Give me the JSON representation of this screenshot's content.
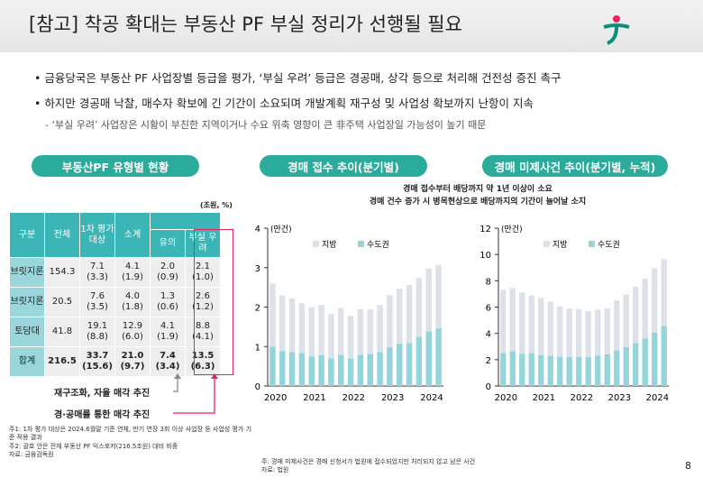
{
  "title": "[참고] 착공 확대는 부동산 PF 부실 정리가 선행될 필요",
  "bullets": [
    "금융당국은 부동산 PF 사업장별 등급을 평가, ‘부실 우려’ 등급은 경공매, 상각 등으로 처리해 건전성 증진 촉구",
    "하지만 경공매 낙찰, 매수자 확보에 긴 기간이 소요되며 개발계획 재구성 및 사업성 확보까지 난항이 지속"
  ],
  "sub_bullet": "- ‘부실 우려’ 사업장은 시황이 부진한 지역이거나 수요 위축 영향이 큰 非주택 사업장일 가능성이 높기 때문",
  "page_number": "8",
  "colors": {
    "accent": "#2bab9b",
    "header": "#3bb5b5",
    "local": "#dde1e8",
    "capital": "#94d5db",
    "highlight": "#e8245a"
  },
  "table": {
    "title": "부동산PF 유형별 현황",
    "unit": "(조원, %)",
    "headers": [
      "구분",
      "전체",
      "1차 평가 대상",
      "소계",
      "유의",
      "부실 우려"
    ],
    "rows": [
      {
        "label": "브릿지론",
        "values": [
          "154.3",
          "7.1\n(3.3)",
          "4.1\n(1.9)",
          "2.0\n(0.9)",
          "2.1\n(1.0)"
        ]
      },
      {
        "label": "브릿지론",
        "values": [
          "20.5",
          "7.6\n(3.5)",
          "4.0\n(1.8)",
          "1.3\n(0.6)",
          "2.6\n(1.2)"
        ]
      },
      {
        "label": "토담대",
        "values": [
          "41.8",
          "19.1\n(8.8)",
          "12.9\n(6.0)",
          "4.1\n(1.9)",
          "8.8\n(4.1)"
        ]
      },
      {
        "label": "합계",
        "values": [
          "216.5",
          "33.7\n(15.6)",
          "21.0\n(9.7)",
          "7.4\n(3.4)",
          "13.5\n(6.3)"
        ]
      }
    ],
    "annotation_gray": "재구조화, 자율 매각 추진",
    "annotation_red": "경·공매를 통한 매각 추진"
  },
  "chart_data": [
    {
      "type": "bar",
      "stacked": true,
      "title": "경매 접수 추이(분기별)",
      "annotation": [
        "경매 접수부터 배당까지 약 1년 이상이 소요",
        "경매 건수 증가 시 병목현상으로 배당까지의 기간이 늘어날 소지"
      ],
      "unit": "(만건)",
      "ylim": [
        0,
        4
      ],
      "yticks": [
        0,
        1,
        2,
        3,
        4
      ],
      "xticks": [
        "2020",
        "2021",
        "2022",
        "2023",
        "2024"
      ],
      "series": [
        {
          "name": "수도권",
          "values": [
            1.0,
            0.88,
            0.86,
            0.84,
            0.75,
            0.78,
            0.7,
            0.79,
            0.7,
            0.79,
            0.81,
            0.86,
            0.98,
            1.07,
            1.09,
            1.25,
            1.39,
            1.46
          ]
        },
        {
          "name": "지방",
          "values": [
            1.6,
            1.42,
            1.36,
            1.26,
            1.25,
            1.27,
            1.13,
            1.18,
            1.08,
            1.16,
            1.13,
            1.19,
            1.32,
            1.4,
            1.47,
            1.49,
            1.59,
            1.61
          ]
        }
      ]
    },
    {
      "type": "bar",
      "stacked": true,
      "title": "경매 미제사건 추이(분기별, 누적)",
      "unit": "(만건)",
      "ylim": [
        0,
        12
      ],
      "yticks": [
        0,
        2,
        4,
        6,
        8,
        10,
        12
      ],
      "xticks": [
        "2020",
        "2021",
        "2022",
        "2023",
        "2024"
      ],
      "series": [
        {
          "name": "수도권",
          "values": [
            2.5,
            2.65,
            2.45,
            2.5,
            2.35,
            2.3,
            2.2,
            2.2,
            2.2,
            2.2,
            2.3,
            2.4,
            2.7,
            2.95,
            3.25,
            3.6,
            4.05,
            4.55
          ]
        },
        {
          "name": "지방",
          "values": [
            4.8,
            4.8,
            4.65,
            4.4,
            4.35,
            4.1,
            3.85,
            3.7,
            3.65,
            3.5,
            3.5,
            3.5,
            3.8,
            4.0,
            4.3,
            4.55,
            4.9,
            5.1
          ]
        }
      ]
    }
  ],
  "footnotes_left": [
    "주1: 1차 평가 대상은 2024.6월말 기준 연체, 만기 연장 3회 이상 사업장 등 사업성 평가 기준 적용 결과",
    "주2: 괄호 안은 전체 부동산 PF 익스포저(216.5조원) 대비 비중",
    "자료: 금융감독원"
  ],
  "footnotes_right": [
    "주: 경매 미제사건은 경매 신청서가 법원에 접수되었지만 처리되지 않고 남은 사건",
    "자료: 법원"
  ]
}
